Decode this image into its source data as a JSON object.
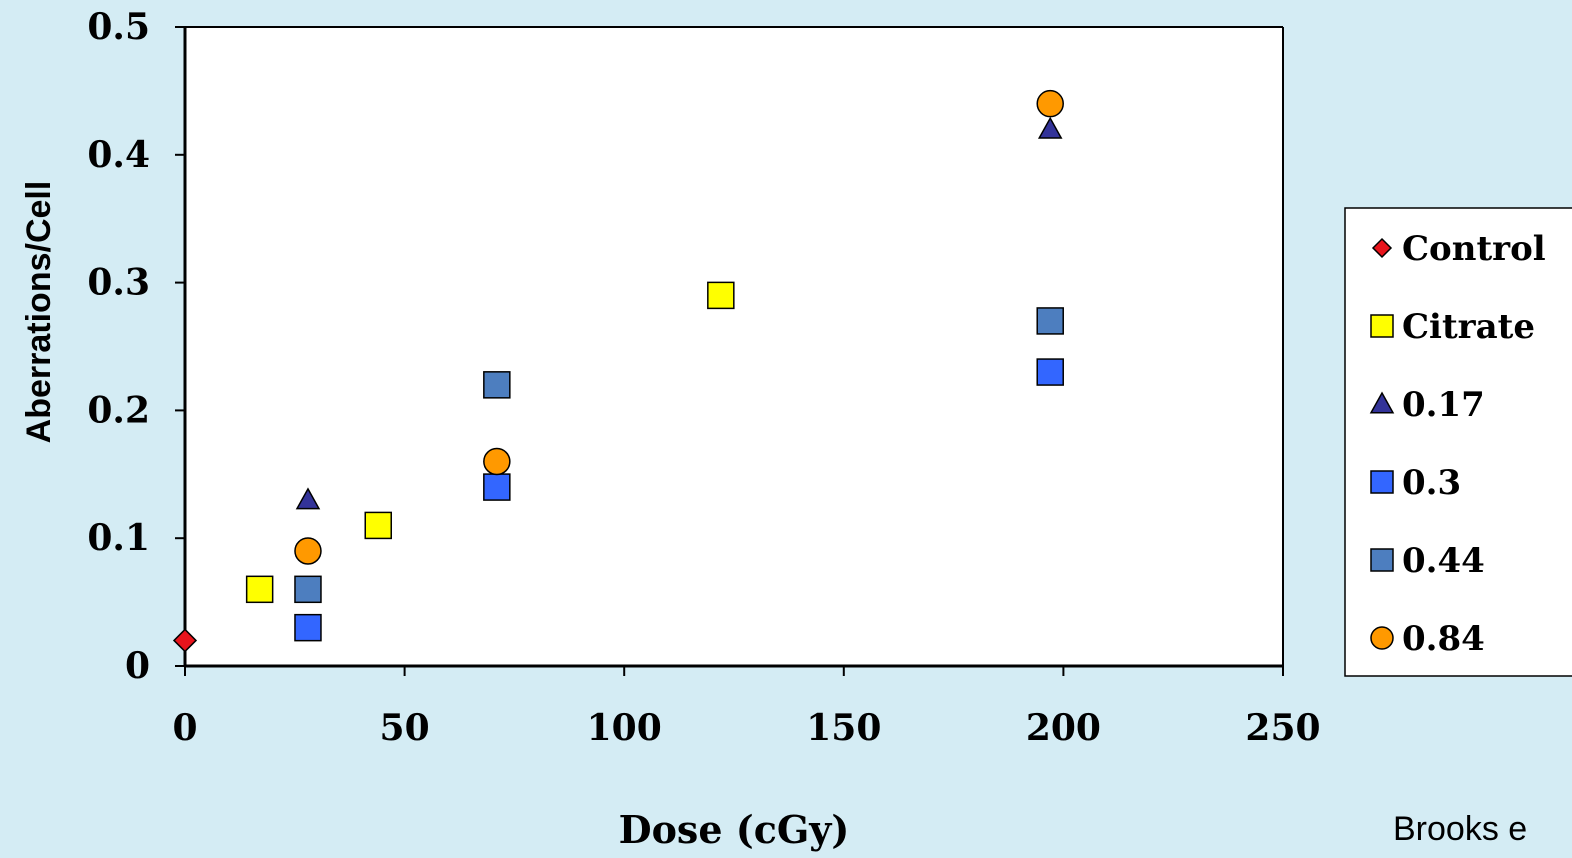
{
  "chart_data": {
    "type": "scatter",
    "xlabel": "Dose (cGy)",
    "ylabel": "Aberrations/Cell",
    "xlim": [
      0,
      250
    ],
    "ylim": [
      0,
      0.5
    ],
    "xticks": [
      0,
      50,
      100,
      150,
      200,
      250
    ],
    "xtick_labels": [
      "0",
      "50",
      "100",
      "150",
      "200",
      "250"
    ],
    "yticks": [
      0,
      0.1,
      0.2,
      0.3,
      0.4,
      0.5
    ],
    "ytick_labels": [
      "0",
      "0.1",
      "0.2",
      "0.3",
      "0.4",
      "0.5"
    ],
    "grid": false,
    "legend_position": "right",
    "series": [
      {
        "name": "Control",
        "marker": "diamond",
        "color": "#e8141c",
        "x": [
          0
        ],
        "y": [
          0.02
        ]
      },
      {
        "name": "Citrate",
        "marker": "square",
        "color": "#ffff00",
        "x": [
          17,
          44,
          122
        ],
        "y": [
          0.06,
          0.11,
          0.29
        ]
      },
      {
        "name": "0.17",
        "marker": "triangle",
        "color": "#333399",
        "x": [
          28,
          197
        ],
        "y": [
          0.13,
          0.42
        ]
      },
      {
        "name": "0.3",
        "marker": "square",
        "color": "#3366ff",
        "x": [
          28,
          71,
          197
        ],
        "y": [
          0.03,
          0.14,
          0.23
        ]
      },
      {
        "name": "0.44",
        "marker": "square",
        "color": "#4d7ebf",
        "x": [
          28,
          71,
          197
        ],
        "y": [
          0.06,
          0.22,
          0.27
        ]
      },
      {
        "name": "0.84",
        "marker": "circle",
        "color": "#ff9900",
        "x": [
          28,
          71,
          197
        ],
        "y": [
          0.09,
          0.16,
          0.44
        ]
      }
    ]
  },
  "credit": "Brooks e"
}
